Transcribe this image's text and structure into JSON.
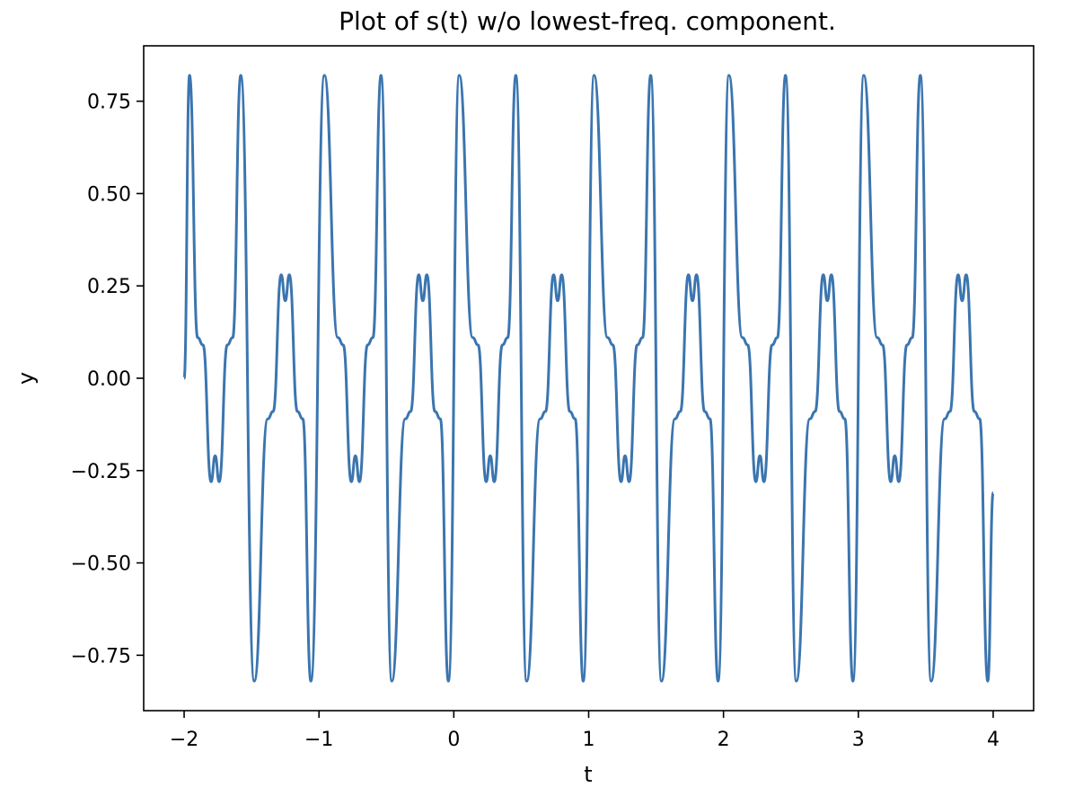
{
  "chart_data": {
    "type": "line",
    "title": "Plot of s(t) w/o lowest-freq. component.",
    "xlabel": "t",
    "ylabel": "y",
    "xlim": [
      -2.3,
      4.3
    ],
    "ylim": [
      -0.9,
      0.9
    ],
    "x_ticks": [
      -2,
      -1,
      0,
      1,
      2,
      3,
      4
    ],
    "x_tick_labels": [
      "−2",
      "−1",
      "0",
      "1",
      "2",
      "3",
      "4"
    ],
    "y_ticks": [
      0.75,
      0.5,
      0.25,
      0.0,
      -0.25,
      -0.5,
      -0.75
    ],
    "y_tick_labels": [
      "0.75",
      "0.50",
      "0.25",
      "0.00",
      "−0.25",
      "−0.50",
      "−0.75"
    ],
    "grid": false,
    "series": [
      {
        "color": "#3b75af",
        "t_range": [
          -2,
          4
        ],
        "points": [
          [
            -2.0,
            0.0
          ],
          [
            -1.96,
            0.82
          ],
          [
            -1.9,
            0.11
          ],
          [
            -1.86,
            0.09
          ],
          [
            -1.8,
            -0.28
          ],
          [
            -1.77,
            -0.21
          ],
          [
            -1.74,
            -0.28
          ],
          [
            -1.68,
            0.09
          ],
          [
            -1.64,
            0.11
          ],
          [
            -1.58,
            0.82
          ],
          [
            -1.48,
            -0.82
          ],
          [
            -1.38,
            -0.11
          ],
          [
            -1.34,
            -0.09
          ],
          [
            -1.28,
            0.28
          ],
          [
            -1.25,
            0.21
          ],
          [
            -1.22,
            0.28
          ],
          [
            -1.16,
            -0.09
          ],
          [
            -1.12,
            -0.11
          ],
          [
            -1.06,
            -0.82
          ],
          [
            -0.96,
            0.82
          ],
          [
            -0.86,
            0.11
          ],
          [
            -0.82,
            0.09
          ],
          [
            -0.76,
            -0.28
          ],
          [
            -0.73,
            -0.21
          ],
          [
            -0.7,
            -0.28
          ],
          [
            -0.64,
            0.09
          ],
          [
            -0.6,
            0.11
          ],
          [
            -0.54,
            0.82
          ],
          [
            -0.46,
            -0.82
          ],
          [
            -0.36,
            -0.11
          ],
          [
            -0.32,
            -0.09
          ],
          [
            -0.26,
            0.28
          ],
          [
            -0.23,
            0.21
          ],
          [
            -0.2,
            0.28
          ],
          [
            -0.14,
            -0.09
          ],
          [
            -0.1,
            -0.11
          ],
          [
            -0.04,
            -0.82
          ],
          [
            0.04,
            0.82
          ],
          [
            0.14,
            0.11
          ],
          [
            0.18,
            0.09
          ],
          [
            0.24,
            -0.28
          ],
          [
            0.27,
            -0.21
          ],
          [
            0.3,
            -0.28
          ],
          [
            0.36,
            0.09
          ],
          [
            0.4,
            0.11
          ],
          [
            0.46,
            0.82
          ],
          [
            0.54,
            -0.82
          ],
          [
            0.64,
            -0.11
          ],
          [
            0.68,
            -0.09
          ],
          [
            0.74,
            0.28
          ],
          [
            0.77,
            0.21
          ],
          [
            0.8,
            0.28
          ],
          [
            0.86,
            -0.09
          ],
          [
            0.9,
            -0.11
          ],
          [
            0.96,
            -0.82
          ],
          [
            1.04,
            0.82
          ],
          [
            1.14,
            0.11
          ],
          [
            1.18,
            0.09
          ],
          [
            1.24,
            -0.28
          ],
          [
            1.27,
            -0.21
          ],
          [
            1.3,
            -0.28
          ],
          [
            1.36,
            0.09
          ],
          [
            1.4,
            0.11
          ],
          [
            1.46,
            0.82
          ],
          [
            1.54,
            -0.82
          ],
          [
            1.64,
            -0.11
          ],
          [
            1.68,
            -0.09
          ],
          [
            1.74,
            0.28
          ],
          [
            1.77,
            0.21
          ],
          [
            1.8,
            0.28
          ],
          [
            1.86,
            -0.09
          ],
          [
            1.9,
            -0.11
          ],
          [
            1.96,
            -0.82
          ],
          [
            2.04,
            0.82
          ],
          [
            2.14,
            0.11
          ],
          [
            2.18,
            0.09
          ],
          [
            2.24,
            -0.28
          ],
          [
            2.27,
            -0.21
          ],
          [
            2.3,
            -0.28
          ],
          [
            2.36,
            0.09
          ],
          [
            2.4,
            0.11
          ],
          [
            2.46,
            0.82
          ],
          [
            2.54,
            -0.82
          ],
          [
            2.64,
            -0.11
          ],
          [
            2.68,
            -0.09
          ],
          [
            2.74,
            0.28
          ],
          [
            2.77,
            0.21
          ],
          [
            2.8,
            0.28
          ],
          [
            2.86,
            -0.09
          ],
          [
            2.9,
            -0.11
          ],
          [
            2.96,
            -0.82
          ],
          [
            3.04,
            0.82
          ],
          [
            3.14,
            0.11
          ],
          [
            3.18,
            0.09
          ],
          [
            3.24,
            -0.28
          ],
          [
            3.27,
            -0.21
          ],
          [
            3.3,
            -0.28
          ],
          [
            3.36,
            0.09
          ],
          [
            3.4,
            0.11
          ],
          [
            3.46,
            0.82
          ],
          [
            3.54,
            -0.82
          ],
          [
            3.64,
            -0.11
          ],
          [
            3.68,
            -0.09
          ],
          [
            3.74,
            0.28
          ],
          [
            3.77,
            0.21
          ],
          [
            3.8,
            0.28
          ],
          [
            3.86,
            -0.09
          ],
          [
            3.9,
            -0.11
          ],
          [
            3.96,
            -0.82
          ],
          [
            4.0,
            -0.31
          ]
        ]
      }
    ]
  }
}
